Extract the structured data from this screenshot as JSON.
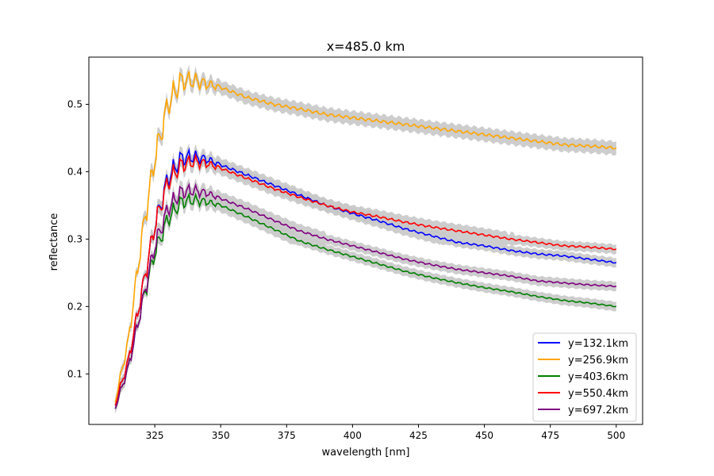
{
  "chart_data": {
    "type": "line",
    "title": "x=485.0 km",
    "xlabel": "wavelength [nm]",
    "ylabel": "reflectance",
    "xlim": [
      300,
      510
    ],
    "ylim": [
      0.025,
      0.57
    ],
    "xticks": [
      325,
      350,
      375,
      400,
      425,
      450,
      475,
      500
    ],
    "yticks": [
      0.1,
      0.2,
      0.3,
      0.4,
      0.5
    ],
    "x_range": [
      310,
      500
    ],
    "legend_position": "lower-right",
    "uncertainty_band_color": "#c8c8c8",
    "series": [
      {
        "name": "y=132.1km",
        "color": "#0000ff",
        "x": [
          310,
          315,
          320,
          325,
          330,
          335,
          340,
          345,
          350,
          360,
          370,
          380,
          390,
          400,
          410,
          420,
          430,
          440,
          450,
          460,
          470,
          480,
          490,
          500
        ],
        "y": [
          0.055,
          0.12,
          0.22,
          0.32,
          0.39,
          0.42,
          0.422,
          0.418,
          0.41,
          0.395,
          0.38,
          0.365,
          0.35,
          0.338,
          0.327,
          0.315,
          0.305,
          0.295,
          0.29,
          0.283,
          0.278,
          0.275,
          0.27,
          0.265
        ]
      },
      {
        "name": "y=256.9km",
        "color": "#ffa500",
        "x": [
          310,
          315,
          320,
          325,
          330,
          335,
          340,
          345,
          350,
          360,
          370,
          380,
          390,
          400,
          410,
          420,
          430,
          440,
          450,
          460,
          470,
          480,
          490,
          500
        ],
        "y": [
          0.06,
          0.15,
          0.3,
          0.42,
          0.5,
          0.535,
          0.535,
          0.53,
          0.525,
          0.51,
          0.5,
          0.493,
          0.485,
          0.48,
          0.475,
          0.47,
          0.465,
          0.46,
          0.455,
          0.45,
          0.445,
          0.44,
          0.438,
          0.435
        ]
      },
      {
        "name": "y=403.6km",
        "color": "#008000",
        "x": [
          310,
          315,
          320,
          325,
          330,
          335,
          340,
          345,
          350,
          360,
          370,
          380,
          390,
          400,
          410,
          420,
          430,
          440,
          450,
          460,
          470,
          480,
          490,
          500
        ],
        "y": [
          0.05,
          0.11,
          0.2,
          0.28,
          0.33,
          0.355,
          0.358,
          0.355,
          0.35,
          0.333,
          0.315,
          0.297,
          0.285,
          0.274,
          0.263,
          0.252,
          0.243,
          0.235,
          0.228,
          0.222,
          0.215,
          0.209,
          0.205,
          0.2
        ]
      },
      {
        "name": "y=550.4km",
        "color": "#ff0000",
        "x": [
          310,
          315,
          320,
          325,
          330,
          335,
          340,
          345,
          350,
          360,
          370,
          380,
          390,
          400,
          410,
          420,
          430,
          440,
          450,
          460,
          470,
          480,
          490,
          500
        ],
        "y": [
          0.055,
          0.12,
          0.22,
          0.32,
          0.385,
          0.41,
          0.415,
          0.412,
          0.405,
          0.39,
          0.375,
          0.362,
          0.35,
          0.34,
          0.333,
          0.325,
          0.318,
          0.312,
          0.306,
          0.3,
          0.295,
          0.29,
          0.288,
          0.285
        ]
      },
      {
        "name": "y=697.2km",
        "color": "#800080",
        "x": [
          310,
          315,
          320,
          325,
          330,
          335,
          340,
          345,
          350,
          360,
          370,
          380,
          390,
          400,
          410,
          420,
          430,
          440,
          450,
          460,
          470,
          480,
          490,
          500
        ],
        "y": [
          0.05,
          0.11,
          0.2,
          0.29,
          0.345,
          0.37,
          0.372,
          0.368,
          0.36,
          0.345,
          0.328,
          0.312,
          0.3,
          0.29,
          0.28,
          0.27,
          0.262,
          0.255,
          0.25,
          0.245,
          0.238,
          0.235,
          0.232,
          0.23
        ]
      }
    ]
  }
}
